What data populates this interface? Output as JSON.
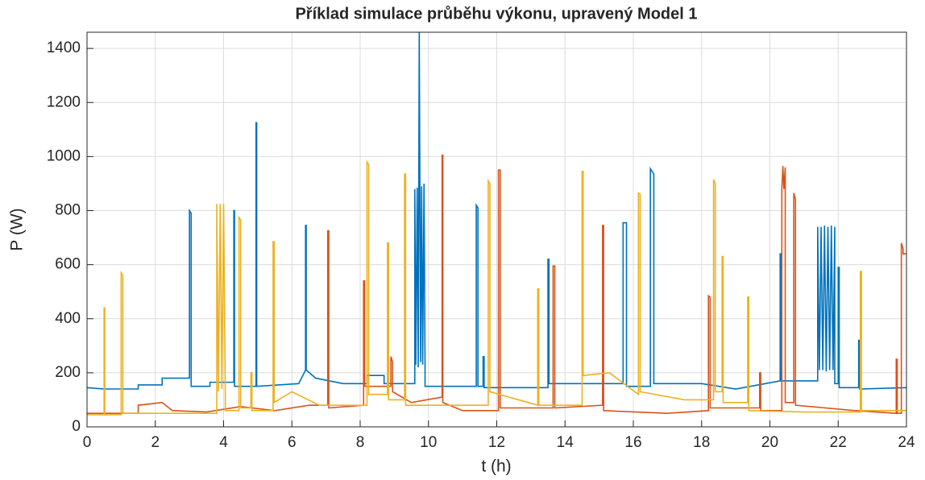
{
  "chart_data": {
    "type": "line",
    "title": "Příklad simulace průběhu výkonu, upravený Model 1",
    "xlabel": "t (h)",
    "ylabel": "P (W)",
    "xlim": [
      0,
      24
    ],
    "xticks": [
      0,
      2,
      4,
      6,
      8,
      10,
      12,
      14,
      16,
      18,
      20,
      22,
      24
    ],
    "ylim": [
      0,
      1460
    ],
    "yticks": [
      0,
      200,
      400,
      600,
      800,
      1000,
      1200,
      1400
    ],
    "grid": true,
    "series": [
      {
        "color": "#0072bd",
        "x": [
          0,
          0.5,
          1.5,
          1.5,
          2.2,
          2.2,
          3,
          3,
          3.05,
          3.05,
          3.6,
          3.6,
          4.3,
          4.3,
          4.32,
          4.32,
          4.95,
          4.95,
          4.97,
          4.97,
          6.2,
          6.4,
          6.4,
          6.42,
          6.42,
          6.7,
          7.5,
          8.2,
          8.2,
          8.7,
          8.7,
          9.6,
          9.6,
          9.63,
          9.67,
          9.7,
          9.73,
          9.77,
          9.8,
          9.83,
          9.87,
          9.9,
          9.9,
          11.4,
          11.4,
          11.45,
          11.45,
          11.6,
          11.6,
          11.63,
          11.63,
          13.5,
          13.5,
          13.53,
          13.53,
          15.7,
          15.7,
          15.8,
          15.8,
          16.5,
          16.5,
          16.6,
          16.6,
          18,
          19,
          20.3,
          20.3,
          20.33,
          20.33,
          21.4,
          21.4,
          21.45,
          21.5,
          21.55,
          21.6,
          21.65,
          21.7,
          21.75,
          21.8,
          21.85,
          21.9,
          21.9,
          22,
          22,
          22.03,
          22.03,
          22.6,
          22.6,
          22.63,
          22.63,
          24
        ],
        "values": [
          145,
          140,
          140,
          155,
          155,
          180,
          180,
          800,
          790,
          150,
          150,
          165,
          165,
          800,
          800,
          150,
          150,
          1125,
          1125,
          150,
          160,
          210,
          745,
          745,
          210,
          180,
          160,
          160,
          190,
          190,
          160,
          160,
          880,
          230,
          885,
          220,
          1460,
          240,
          890,
          230,
          900,
          230,
          150,
          150,
          820,
          810,
          150,
          150,
          260,
          260,
          145,
          145,
          620,
          620,
          160,
          160,
          755,
          755,
          150,
          150,
          955,
          935,
          160,
          160,
          140,
          170,
          640,
          640,
          170,
          170,
          740,
          210,
          740,
          210,
          745,
          205,
          740,
          210,
          745,
          210,
          740,
          160,
          160,
          590,
          590,
          145,
          145,
          320,
          320,
          140,
          145
        ]
      },
      {
        "color": "#d95319",
        "x": [
          0,
          1.5,
          1.5,
          2.2,
          2.5,
          3.5,
          4.5,
          5.5,
          6.5,
          7.05,
          7.05,
          7.08,
          7.08,
          8.1,
          8.1,
          8.13,
          8.13,
          8.9,
          8.9,
          8.95,
          8.95,
          9.5,
          10.4,
          10.4,
          10.42,
          10.42,
          11,
          12.05,
          12.05,
          12.1,
          12.1,
          13.65,
          13.65,
          13.7,
          13.7,
          15.1,
          15.1,
          15.13,
          15.13,
          17,
          18.2,
          18.2,
          18.25,
          18.25,
          19.7,
          19.7,
          19.73,
          19.73,
          20.35,
          20.35,
          20.38,
          20.41,
          20.45,
          20.45,
          20.7,
          20.7,
          20.75,
          20.75,
          22.5,
          23.7,
          23.7,
          23.73,
          23.73,
          23.85,
          23.85,
          23.9,
          23.9,
          24
        ],
        "values": [
          50,
          50,
          80,
          90,
          60,
          55,
          75,
          60,
          80,
          80,
          725,
          725,
          70,
          80,
          540,
          540,
          150,
          150,
          260,
          240,
          130,
          90,
          110,
          1005,
          1005,
          90,
          60,
          60,
          950,
          950,
          70,
          70,
          595,
          595,
          70,
          80,
          745,
          745,
          60,
          50,
          60,
          485,
          480,
          70,
          70,
          200,
          200,
          60,
          60,
          880,
          965,
          880,
          960,
          90,
          90,
          865,
          840,
          80,
          60,
          50,
          250,
          250,
          50,
          50,
          680,
          660,
          640,
          640
        ]
      },
      {
        "color": "#edb120",
        "x": [
          0,
          0.5,
          0.5,
          0.52,
          0.52,
          1,
          1,
          1.05,
          1.05,
          3.8,
          3.8,
          3.85,
          3.9,
          3.95,
          4,
          4.05,
          4.05,
          4.45,
          4.45,
          4.5,
          4.5,
          4.8,
          4.8,
          4.83,
          4.83,
          5.45,
          5.45,
          5.48,
          5.48,
          6,
          6.8,
          8.2,
          8.2,
          8.25,
          8.25,
          8.8,
          8.8,
          8.83,
          8.83,
          9.3,
          9.3,
          9.33,
          9.33,
          11.75,
          11.75,
          11.8,
          11.8,
          13.2,
          13.2,
          13.23,
          13.23,
          14.5,
          14.5,
          14.53,
          14.53,
          15.3,
          16.15,
          16.15,
          16.2,
          16.2,
          17.5,
          18.35,
          18.35,
          18.4,
          18.4,
          18.6,
          18.6,
          18.63,
          18.63,
          19.35,
          19.35,
          19.38,
          19.38,
          21,
          22.65,
          22.65,
          22.68,
          22.68,
          24
        ],
        "values": [
          45,
          45,
          440,
          440,
          45,
          45,
          570,
          560,
          50,
          50,
          825,
          130,
          825,
          140,
          825,
          130,
          60,
          60,
          775,
          765,
          70,
          70,
          200,
          200,
          60,
          60,
          685,
          685,
          90,
          130,
          80,
          80,
          980,
          970,
          120,
          120,
          680,
          680,
          100,
          100,
          935,
          935,
          80,
          80,
          910,
          900,
          130,
          80,
          510,
          510,
          80,
          80,
          945,
          945,
          190,
          200,
          120,
          865,
          860,
          130,
          100,
          100,
          915,
          900,
          130,
          130,
          630,
          630,
          90,
          90,
          480,
          480,
          60,
          55,
          55,
          575,
          575,
          60,
          60
        ]
      }
    ]
  }
}
